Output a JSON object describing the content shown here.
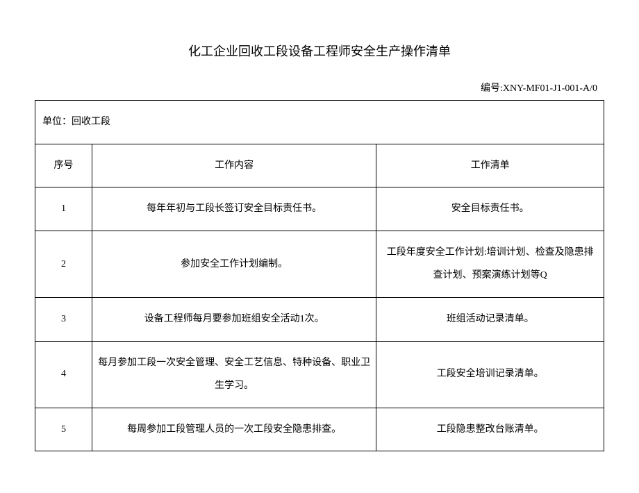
{
  "title": "化工企业回收工段设备工程师安全生产操作清单",
  "doc_id_label": "编号:",
  "doc_id": "XNY-MF01-J1-001-A/0",
  "unit_label": "单位：",
  "unit_value": "回收工段",
  "headers": {
    "seq": "序号",
    "content": "工作内容",
    "checklist": "工作清单"
  },
  "rows": [
    {
      "seq": "1",
      "content": "每年年初与工段长签订安全目标责任书。",
      "checklist": "安全目标责任书。"
    },
    {
      "seq": "2",
      "content": "参加安全工作计划编制。",
      "checklist": "工段年度安全工作计划:培训计划、检查及隐患排查计划、预案演练计划等Q"
    },
    {
      "seq": "3",
      "content": "设备工程师每月要参加班组安全活动1次。",
      "checklist": "班组活动记录清单。"
    },
    {
      "seq": "4",
      "content": "每月参加工段一次安全管理、安全工艺信息、特种设备、职业卫生学习。",
      "checklist": "工段安全培训记录清单。"
    },
    {
      "seq": "5",
      "content": "每周参加工段管理人员的一次工段安全隐患排查。",
      "checklist": "工段隐患整改台账清单。"
    }
  ]
}
